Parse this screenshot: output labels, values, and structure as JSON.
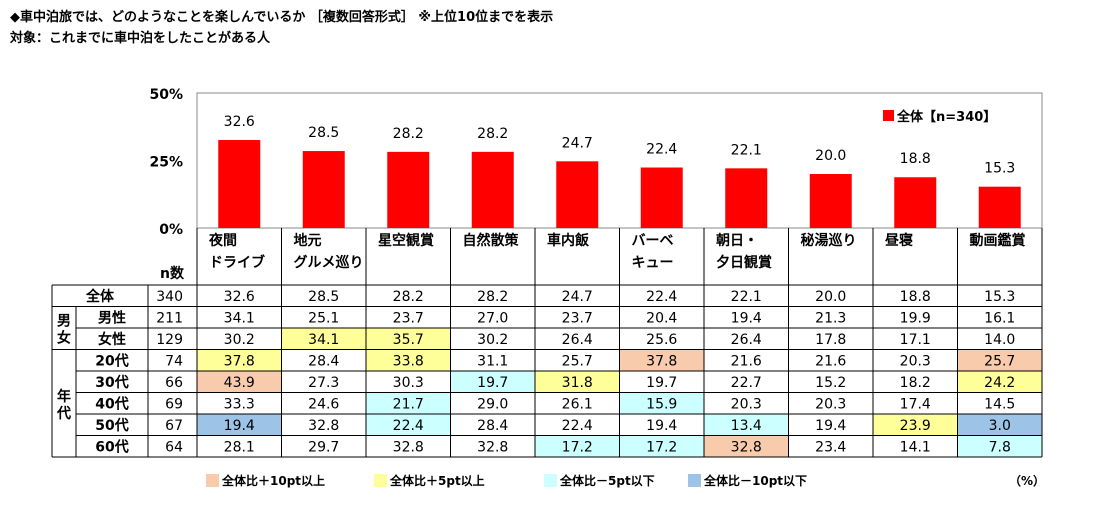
{
  "title_line1": "◆車中泊旅では、どのようなことを楽しんでいるか ［複数回答形式］ ※上位10位までを表示",
  "title_line2": "対象：これまでに車中泊をしたことがある人",
  "n_header": "n数",
  "unit": "（%）",
  "group_labels": {
    "gender": "男女",
    "age": "年代"
  },
  "colors": {
    "bar": "#ff0000",
    "plus10": "#f8cbad",
    "plus5": "#ffff99",
    "minus5": "#ccffff",
    "minus10": "#9dc3e6"
  },
  "legend": [
    {
      "label": "全体比＋10pt以上",
      "color": "#f8cbad"
    },
    {
      "label": "全体比＋5pt以上",
      "color": "#ffff99"
    },
    {
      "label": "全体比－5pt以下",
      "color": "#ccffff"
    },
    {
      "label": "全体比－10pt以下",
      "color": "#9dc3e6"
    }
  ],
  "chart_data": {
    "type": "bar",
    "categories": [
      [
        "夜間",
        "ドライブ"
      ],
      [
        "地元",
        "グルメ巡り"
      ],
      [
        "星空観賞"
      ],
      [
        "自然散策"
      ],
      [
        "車内飯"
      ],
      [
        "バーベ",
        "キュー"
      ],
      [
        "朝日・",
        "夕日観賞"
      ],
      [
        "秘湯巡り"
      ],
      [
        "昼寝"
      ],
      [
        "動画鑑賞"
      ]
    ],
    "series": [
      {
        "name": "全体【n=340】",
        "values": [
          32.6,
          28.5,
          28.2,
          28.2,
          24.7,
          22.4,
          22.1,
          20.0,
          18.8,
          15.3
        ]
      }
    ],
    "ylim": [
      0,
      50
    ],
    "yticks": [
      "0%",
      "25%",
      "50%"
    ],
    "legend_position": "top-right",
    "table": {
      "rows": [
        {
          "group": "",
          "label": "全体",
          "n": "340",
          "values": [
            "32.6",
            "28.5",
            "28.2",
            "28.2",
            "24.7",
            "22.4",
            "22.1",
            "20.0",
            "18.8",
            "15.3"
          ]
        },
        {
          "group": "gender",
          "label": "男性",
          "n": "211",
          "values": [
            "34.1",
            "25.1",
            "23.7",
            "27.0",
            "23.7",
            "20.4",
            "19.4",
            "21.3",
            "19.9",
            "16.1"
          ]
        },
        {
          "group": "gender",
          "label": "女性",
          "n": "129",
          "values": [
            "30.2",
            "34.1",
            "35.7",
            "30.2",
            "26.4",
            "25.6",
            "26.4",
            "17.8",
            "17.1",
            "14.0"
          ]
        },
        {
          "group": "age",
          "label": "20代",
          "n": "74",
          "values": [
            "37.8",
            "28.4",
            "33.8",
            "31.1",
            "25.7",
            "37.8",
            "21.6",
            "21.6",
            "20.3",
            "25.7"
          ]
        },
        {
          "group": "age",
          "label": "30代",
          "n": "66",
          "values": [
            "43.9",
            "27.3",
            "30.3",
            "19.7",
            "31.8",
            "19.7",
            "22.7",
            "15.2",
            "18.2",
            "24.2"
          ]
        },
        {
          "group": "age",
          "label": "40代",
          "n": "69",
          "values": [
            "33.3",
            "24.6",
            "21.7",
            "29.0",
            "26.1",
            "15.9",
            "20.3",
            "20.3",
            "17.4",
            "14.5"
          ]
        },
        {
          "group": "age",
          "label": "50代",
          "n": "67",
          "values": [
            "19.4",
            "32.8",
            "22.4",
            "28.4",
            "22.4",
            "19.4",
            "13.4",
            "19.4",
            "23.9",
            "3.0"
          ]
        },
        {
          "group": "age",
          "label": "60代",
          "n": "64",
          "values": [
            "28.1",
            "29.7",
            "32.8",
            "32.8",
            "17.2",
            "17.2",
            "32.8",
            "23.4",
            "14.1",
            "7.8"
          ]
        }
      ]
    }
  }
}
